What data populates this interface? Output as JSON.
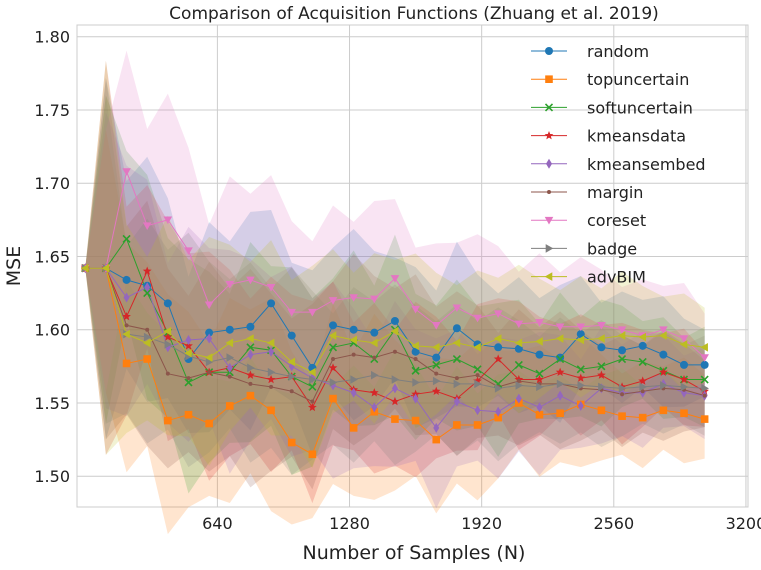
{
  "chart_data": {
    "type": "line",
    "title": "Comparison of Acquisition Functions (Zhuang et al. 2019)",
    "xlabel": "Number of Samples (N)",
    "ylabel": "MSE",
    "xlim": [
      -40,
      3210
    ],
    "ylim": [
      1.479,
      1.808
    ],
    "xticks": [
      640,
      1280,
      1920,
      2560,
      3200
    ],
    "yticks": [
      1.5,
      1.55,
      1.6,
      1.65,
      1.7,
      1.75,
      1.8
    ],
    "ytick_labels": [
      "1.50",
      "1.55",
      "1.60",
      "1.65",
      "1.70",
      "1.75",
      "1.80"
    ],
    "grid": true,
    "legend_position": "top-right",
    "shaded_bands": true,
    "x": [
      0,
      100,
      200,
      300,
      400,
      500,
      600,
      700,
      800,
      900,
      1000,
      1100,
      1200,
      1300,
      1400,
      1500,
      1600,
      1700,
      1800,
      1900,
      2000,
      2100,
      2200,
      2300,
      2400,
      2500,
      2600,
      2700,
      2800,
      2900,
      3000
    ],
    "series": [
      {
        "name": "random",
        "color": "#1f77b4",
        "marker": "circle",
        "values": [
          1.642,
          1.642,
          1.634,
          1.63,
          1.618,
          1.58,
          1.598,
          1.6,
          1.602,
          1.618,
          1.596,
          1.574,
          1.603,
          1.6,
          1.598,
          1.606,
          1.585,
          1.581,
          1.601,
          1.59,
          1.588,
          1.587,
          1.583,
          1.581,
          1.597,
          1.588,
          1.586,
          1.589,
          1.583,
          1.576,
          1.576
        ]
      },
      {
        "name": "topuncertain",
        "color": "#ff7f0e",
        "marker": "square",
        "values": [
          1.642,
          1.642,
          1.577,
          1.58,
          1.538,
          1.542,
          1.536,
          1.548,
          1.555,
          1.545,
          1.523,
          1.515,
          1.553,
          1.533,
          1.544,
          1.539,
          1.538,
          1.525,
          1.535,
          1.535,
          1.54,
          1.55,
          1.542,
          1.543,
          1.549,
          1.545,
          1.541,
          1.54,
          1.545,
          1.543,
          1.539
        ]
      },
      {
        "name": "softuncertain",
        "color": "#2ca02c",
        "marker": "x",
        "values": [
          1.642,
          1.642,
          1.662,
          1.625,
          1.598,
          1.564,
          1.571,
          1.571,
          1.588,
          1.586,
          1.568,
          1.561,
          1.588,
          1.591,
          1.58,
          1.6,
          1.572,
          1.576,
          1.58,
          1.573,
          1.563,
          1.576,
          1.57,
          1.58,
          1.573,
          1.575,
          1.58,
          1.578,
          1.572,
          1.566,
          1.566
        ]
      },
      {
        "name": "kmeansdata",
        "color": "#d62728",
        "marker": "star",
        "values": [
          1.642,
          1.642,
          1.609,
          1.64,
          1.595,
          1.589,
          1.571,
          1.574,
          1.569,
          1.566,
          1.568,
          1.547,
          1.574,
          1.559,
          1.557,
          1.551,
          1.556,
          1.558,
          1.553,
          1.565,
          1.58,
          1.566,
          1.566,
          1.571,
          1.567,
          1.569,
          1.561,
          1.565,
          1.571,
          1.566,
          1.558
        ]
      },
      {
        "name": "kmeansembed",
        "color": "#9467bd",
        "marker": "diamond",
        "values": [
          1.642,
          1.642,
          1.622,
          1.629,
          1.588,
          1.593,
          1.594,
          1.574,
          1.583,
          1.585,
          1.575,
          1.567,
          1.562,
          1.557,
          1.547,
          1.56,
          1.553,
          1.533,
          1.551,
          1.545,
          1.544,
          1.553,
          1.547,
          1.555,
          1.548,
          1.56,
          1.557,
          1.557,
          1.563,
          1.557,
          1.555
        ]
      },
      {
        "name": "margin",
        "color": "#8c564b",
        "marker": "dot",
        "values": [
          1.642,
          1.642,
          1.603,
          1.6,
          1.57,
          1.567,
          1.571,
          1.568,
          1.563,
          1.561,
          1.558,
          1.551,
          1.58,
          1.583,
          1.581,
          1.585,
          1.58,
          1.57,
          1.567,
          1.569,
          1.561,
          1.565,
          1.563,
          1.563,
          1.56,
          1.559,
          1.556,
          1.558,
          1.56,
          1.559,
          1.555
        ]
      },
      {
        "name": "coreset",
        "color": "#e377c2",
        "marker": "triangle-down",
        "values": [
          1.642,
          1.642,
          1.708,
          1.671,
          1.675,
          1.654,
          1.617,
          1.631,
          1.634,
          1.629,
          1.612,
          1.612,
          1.62,
          1.622,
          1.621,
          1.635,
          1.614,
          1.603,
          1.615,
          1.608,
          1.611,
          1.604,
          1.605,
          1.602,
          1.602,
          1.603,
          1.6,
          1.596,
          1.6,
          1.594,
          1.581
        ]
      },
      {
        "name": "badge",
        "color": "#7f7f7f",
        "marker": "triangle-right",
        "values": [
          1.642,
          1.642,
          1.597,
          1.595,
          1.59,
          1.582,
          1.578,
          1.581,
          1.574,
          1.571,
          1.568,
          1.566,
          1.564,
          1.566,
          1.569,
          1.566,
          1.564,
          1.565,
          1.563,
          1.563,
          1.56,
          1.562,
          1.561,
          1.563,
          1.562,
          1.561,
          1.56,
          1.561,
          1.562,
          1.561,
          1.56
        ]
      },
      {
        "name": "advBIM",
        "color": "#bcbd22",
        "marker": "triangle-left",
        "values": [
          1.642,
          1.642,
          1.597,
          1.591,
          1.599,
          1.584,
          1.581,
          1.591,
          1.594,
          1.591,
          1.578,
          1.571,
          1.596,
          1.593,
          1.591,
          1.599,
          1.589,
          1.588,
          1.591,
          1.588,
          1.594,
          1.591,
          1.592,
          1.594,
          1.593,
          1.594,
          1.596,
          1.595,
          1.596,
          1.59,
          1.588
        ]
      }
    ]
  }
}
